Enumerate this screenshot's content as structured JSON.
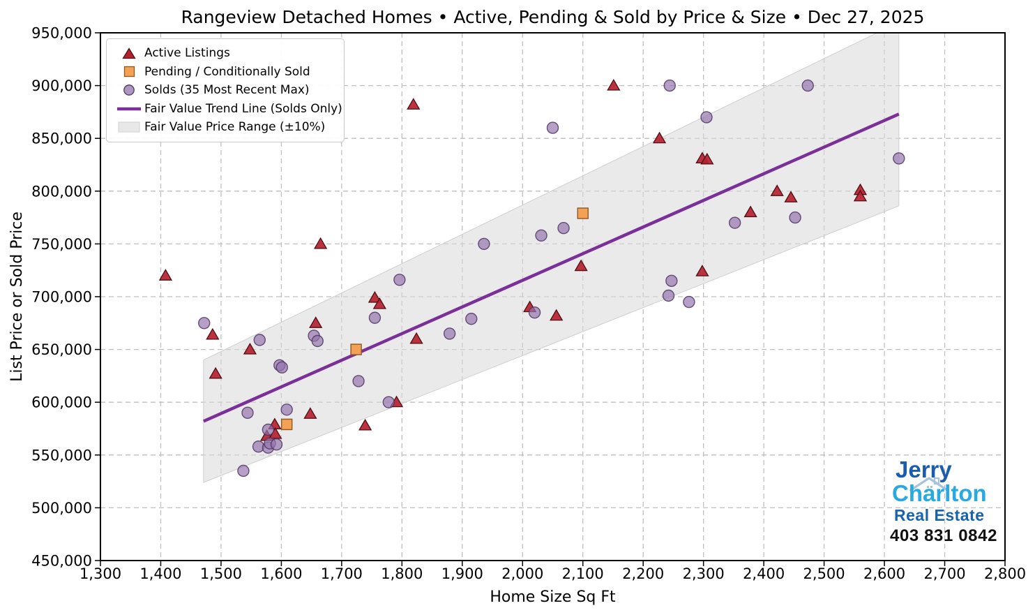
{
  "title": "Rangeview Detached Homes • Active, Pending & Sold by Price & Size • Dec 27, 2025",
  "axes": {
    "xlabel": "Home Size Sq Ft",
    "ylabel": "List Price or Sold Price",
    "xlim": [
      1300,
      2800
    ],
    "ylim": [
      450000,
      950000
    ],
    "x_tick_values": [
      1300,
      1400,
      1500,
      1600,
      1700,
      1800,
      1900,
      2000,
      2100,
      2200,
      2300,
      2400,
      2500,
      2600,
      2700,
      2800
    ],
    "x_tick_labels": [
      "1,300",
      "1,400",
      "1,500",
      "1,600",
      "1,700",
      "1,800",
      "1,900",
      "2,000",
      "2,100",
      "2,200",
      "2,300",
      "2,400",
      "2,500",
      "2,600",
      "2,700",
      "2,800"
    ],
    "y_tick_values": [
      450000,
      500000,
      550000,
      600000,
      650000,
      700000,
      750000,
      800000,
      850000,
      900000,
      950000
    ],
    "y_tick_labels": [
      "450,000",
      "500,000",
      "550,000",
      "600,000",
      "650,000",
      "700,000",
      "750,000",
      "800,000",
      "850,000",
      "900,000",
      "950,000"
    ],
    "grid": true
  },
  "legend": {
    "position": "upper-left",
    "items": [
      {
        "label": "Active Listings",
        "marker": "triangle"
      },
      {
        "label": "Pending / Conditionally Sold",
        "marker": "square"
      },
      {
        "label": "Solds (35 Most Recent Max)",
        "marker": "circle"
      },
      {
        "label": "Fair Value Trend Line (Solds Only)",
        "marker": "line"
      },
      {
        "label": "Fair Value Price Range (±10%)",
        "marker": "patch"
      }
    ]
  },
  "colors": {
    "active_fill": "#B6212F",
    "active_edge": "#4E0E14",
    "pending_fill": "#F2A155",
    "pending_edge": "#8F5722",
    "sold_fill": "#9373AE",
    "sold_edge": "#4F3663",
    "trend": "#7A3098",
    "band_fill": "#D9D9D9",
    "band_edge": "#CFCFCF",
    "grid": "#BFBFBF",
    "spine": "#000000",
    "logo_jerry": "#1B5CAD",
    "logo_charlton": "#29A9E2",
    "logo_realestate": "#1763AE",
    "logo_phone": "#111111",
    "logo_roof": "#A7C3DE"
  },
  "chart_data": {
    "type": "scatter",
    "xlabel": "Home Size Sq Ft",
    "ylabel": "List Price or Sold Price",
    "xlim": [
      1300,
      2800
    ],
    "ylim": [
      450000,
      950000
    ],
    "series": [
      {
        "name": "Active Listings",
        "marker": "triangle",
        "points": [
          [
            1408,
            719000
          ],
          [
            1486,
            663000
          ],
          [
            1491,
            626000
          ],
          [
            1548,
            649000
          ],
          [
            1576,
            567000
          ],
          [
            1589,
            578000
          ],
          [
            1590,
            569000
          ],
          [
            1648,
            588000
          ],
          [
            1657,
            674000
          ],
          [
            1665,
            749000
          ],
          [
            1739,
            577000
          ],
          [
            1755,
            698000
          ],
          [
            1763,
            692000
          ],
          [
            1791,
            599000
          ],
          [
            1819,
            881000
          ],
          [
            1824,
            659000
          ],
          [
            2012,
            689000
          ],
          [
            2056,
            681000
          ],
          [
            2097,
            728000
          ],
          [
            2151,
            899000
          ],
          [
            2227,
            849000
          ],
          [
            2298,
            830000
          ],
          [
            2306,
            829000
          ],
          [
            2298,
            723000
          ],
          [
            2378,
            779000
          ],
          [
            2422,
            799000
          ],
          [
            2445,
            793000
          ],
          [
            2560,
            800000
          ],
          [
            2560,
            794000
          ]
        ]
      },
      {
        "name": "Pending / Conditionally Sold",
        "marker": "square",
        "points": [
          [
            1609,
            579000
          ],
          [
            1724,
            650000
          ],
          [
            2100,
            779000
          ]
        ]
      },
      {
        "name": "Solds (35 Most Recent Max)",
        "marker": "circle",
        "points": [
          [
            1472,
            675000
          ],
          [
            1537,
            535000
          ],
          [
            1544,
            590000
          ],
          [
            1562,
            558000
          ],
          [
            1564,
            659000
          ],
          [
            1578,
            574000
          ],
          [
            1578,
            557000
          ],
          [
            1581,
            561000
          ],
          [
            1592,
            560000
          ],
          [
            1597,
            635000
          ],
          [
            1601,
            633000
          ],
          [
            1609,
            593000
          ],
          [
            1654,
            663000
          ],
          [
            1660,
            658000
          ],
          [
            1728,
            620000
          ],
          [
            1755,
            680000
          ],
          [
            1778,
            600000
          ],
          [
            1796,
            716000
          ],
          [
            1879,
            665000
          ],
          [
            1915,
            679000
          ],
          [
            1936,
            750000
          ],
          [
            2020,
            685000
          ],
          [
            2031,
            758000
          ],
          [
            2050,
            860000
          ],
          [
            2068,
            765000
          ],
          [
            2242,
            701000
          ],
          [
            2244,
            900000
          ],
          [
            2247,
            715000
          ],
          [
            2276,
            695000
          ],
          [
            2305,
            870000
          ],
          [
            2352,
            770000
          ],
          [
            2452,
            775000
          ],
          [
            2473,
            900000
          ],
          [
            2624,
            831000
          ]
        ]
      }
    ],
    "trend_line": {
      "name": "Fair Value Trend Line (Solds Only)",
      "x": [
        1471,
        2624
      ],
      "y": [
        582000,
        873000
      ]
    },
    "band": {
      "name": "Fair Value Price Range (±10%)",
      "x": [
        1471,
        2624
      ],
      "upper": [
        640000,
        960000
      ],
      "lower": [
        524000,
        786000
      ]
    }
  },
  "logo": {
    "name_top": "Jerry",
    "name_bottom": "Charlton",
    "tagline": "Real Estate",
    "phone": "403 831 0842"
  }
}
